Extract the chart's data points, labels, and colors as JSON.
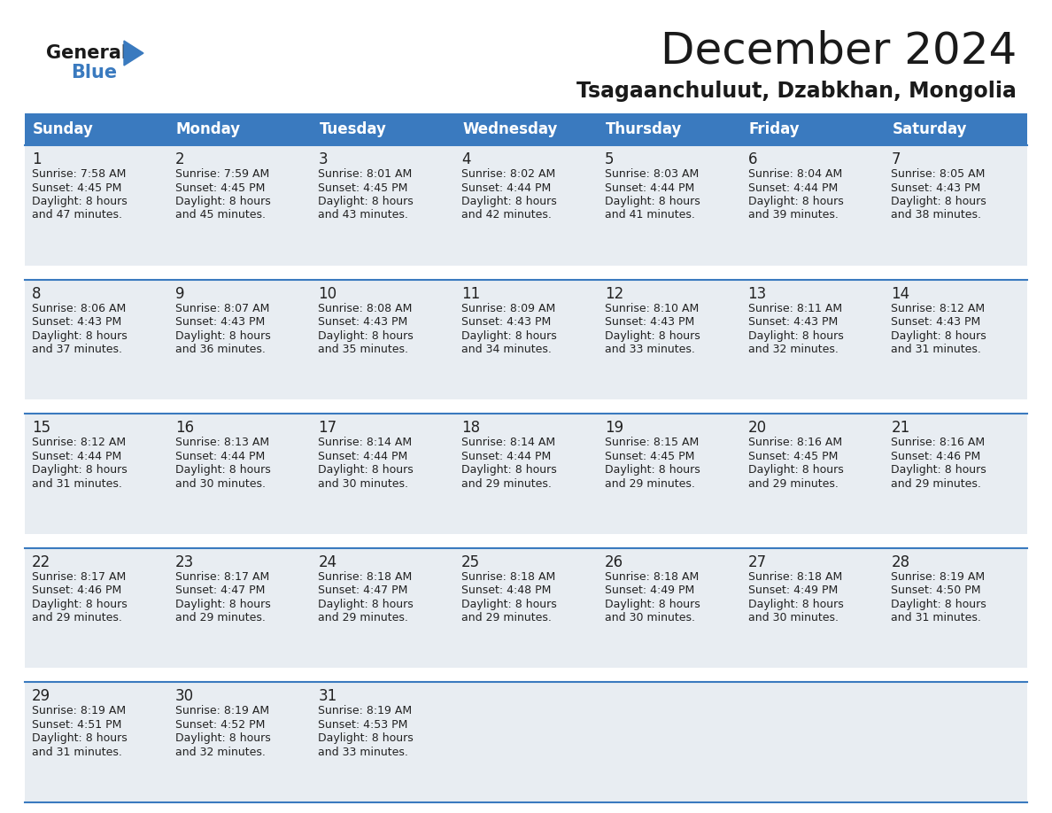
{
  "title": "December 2024",
  "subtitle": "Tsagaanchuluut, Dzabkhan, Mongolia",
  "header_color": "#3a7abf",
  "header_text_color": "#ffffff",
  "cell_bg": "#e8edf2",
  "gap_bg": "#ffffff",
  "row_line_color": "#3a7abf",
  "text_color": "#222222",
  "days_of_week": [
    "Sunday",
    "Monday",
    "Tuesday",
    "Wednesday",
    "Thursday",
    "Friday",
    "Saturday"
  ],
  "calendar_data": [
    [
      {
        "day": 1,
        "sunrise": "7:58 AM",
        "sunset": "4:45 PM",
        "daylight": "8 hours and 47 minutes"
      },
      {
        "day": 2,
        "sunrise": "7:59 AM",
        "sunset": "4:45 PM",
        "daylight": "8 hours and 45 minutes"
      },
      {
        "day": 3,
        "sunrise": "8:01 AM",
        "sunset": "4:45 PM",
        "daylight": "8 hours and 43 minutes"
      },
      {
        "day": 4,
        "sunrise": "8:02 AM",
        "sunset": "4:44 PM",
        "daylight": "8 hours and 42 minutes"
      },
      {
        "day": 5,
        "sunrise": "8:03 AM",
        "sunset": "4:44 PM",
        "daylight": "8 hours and 41 minutes"
      },
      {
        "day": 6,
        "sunrise": "8:04 AM",
        "sunset": "4:44 PM",
        "daylight": "8 hours and 39 minutes"
      },
      {
        "day": 7,
        "sunrise": "8:05 AM",
        "sunset": "4:43 PM",
        "daylight": "8 hours and 38 minutes"
      }
    ],
    [
      {
        "day": 8,
        "sunrise": "8:06 AM",
        "sunset": "4:43 PM",
        "daylight": "8 hours and 37 minutes"
      },
      {
        "day": 9,
        "sunrise": "8:07 AM",
        "sunset": "4:43 PM",
        "daylight": "8 hours and 36 minutes"
      },
      {
        "day": 10,
        "sunrise": "8:08 AM",
        "sunset": "4:43 PM",
        "daylight": "8 hours and 35 minutes"
      },
      {
        "day": 11,
        "sunrise": "8:09 AM",
        "sunset": "4:43 PM",
        "daylight": "8 hours and 34 minutes"
      },
      {
        "day": 12,
        "sunrise": "8:10 AM",
        "sunset": "4:43 PM",
        "daylight": "8 hours and 33 minutes"
      },
      {
        "day": 13,
        "sunrise": "8:11 AM",
        "sunset": "4:43 PM",
        "daylight": "8 hours and 32 minutes"
      },
      {
        "day": 14,
        "sunrise": "8:12 AM",
        "sunset": "4:43 PM",
        "daylight": "8 hours and 31 minutes"
      }
    ],
    [
      {
        "day": 15,
        "sunrise": "8:12 AM",
        "sunset": "4:44 PM",
        "daylight": "8 hours and 31 minutes"
      },
      {
        "day": 16,
        "sunrise": "8:13 AM",
        "sunset": "4:44 PM",
        "daylight": "8 hours and 30 minutes"
      },
      {
        "day": 17,
        "sunrise": "8:14 AM",
        "sunset": "4:44 PM",
        "daylight": "8 hours and 30 minutes"
      },
      {
        "day": 18,
        "sunrise": "8:14 AM",
        "sunset": "4:44 PM",
        "daylight": "8 hours and 29 minutes"
      },
      {
        "day": 19,
        "sunrise": "8:15 AM",
        "sunset": "4:45 PM",
        "daylight": "8 hours and 29 minutes"
      },
      {
        "day": 20,
        "sunrise": "8:16 AM",
        "sunset": "4:45 PM",
        "daylight": "8 hours and 29 minutes"
      },
      {
        "day": 21,
        "sunrise": "8:16 AM",
        "sunset": "4:46 PM",
        "daylight": "8 hours and 29 minutes"
      }
    ],
    [
      {
        "day": 22,
        "sunrise": "8:17 AM",
        "sunset": "4:46 PM",
        "daylight": "8 hours and 29 minutes"
      },
      {
        "day": 23,
        "sunrise": "8:17 AM",
        "sunset": "4:47 PM",
        "daylight": "8 hours and 29 minutes"
      },
      {
        "day": 24,
        "sunrise": "8:18 AM",
        "sunset": "4:47 PM",
        "daylight": "8 hours and 29 minutes"
      },
      {
        "day": 25,
        "sunrise": "8:18 AM",
        "sunset": "4:48 PM",
        "daylight": "8 hours and 29 minutes"
      },
      {
        "day": 26,
        "sunrise": "8:18 AM",
        "sunset": "4:49 PM",
        "daylight": "8 hours and 30 minutes"
      },
      {
        "day": 27,
        "sunrise": "8:18 AM",
        "sunset": "4:49 PM",
        "daylight": "8 hours and 30 minutes"
      },
      {
        "day": 28,
        "sunrise": "8:19 AM",
        "sunset": "4:50 PM",
        "daylight": "8 hours and 31 minutes"
      }
    ],
    [
      {
        "day": 29,
        "sunrise": "8:19 AM",
        "sunset": "4:51 PM",
        "daylight": "8 hours and 31 minutes"
      },
      {
        "day": 30,
        "sunrise": "8:19 AM",
        "sunset": "4:52 PM",
        "daylight": "8 hours and 32 minutes"
      },
      {
        "day": 31,
        "sunrise": "8:19 AM",
        "sunset": "4:53 PM",
        "daylight": "8 hours and 33 minutes"
      },
      null,
      null,
      null,
      null
    ]
  ],
  "logo_general_color": "#1a1a1a",
  "logo_blue_color": "#3a7abf",
  "title_fontsize": 36,
  "subtitle_fontsize": 17,
  "header_fontsize": 12,
  "day_num_fontsize": 12,
  "cell_text_fontsize": 9
}
